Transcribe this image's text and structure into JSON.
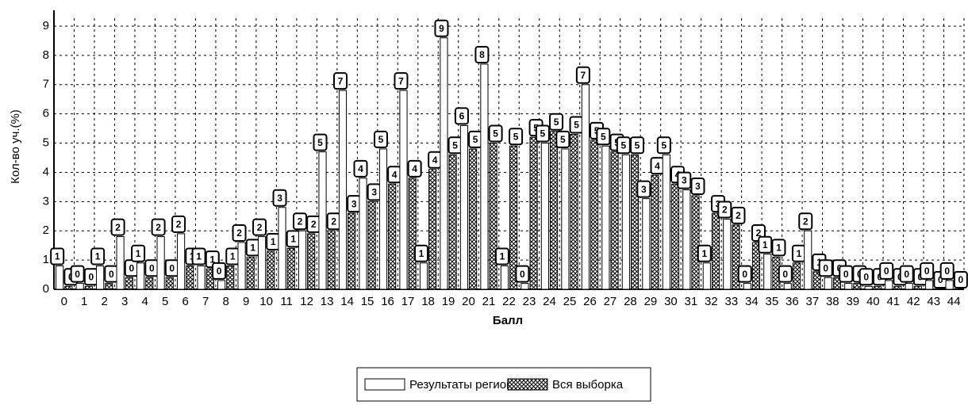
{
  "chart_data": {
    "type": "bar",
    "x_label": "Балл",
    "y_label": "Кол-во уч.(%)",
    "categories": [
      "0",
      "1",
      "2",
      "3",
      "4",
      "5",
      "6",
      "7",
      "8",
      "9",
      "10",
      "11",
      "12",
      "13",
      "14",
      "15",
      "16",
      "17",
      "18",
      "19",
      "20",
      "21",
      "22",
      "23",
      "24",
      "25",
      "26",
      "27",
      "28",
      "29",
      "30",
      "31",
      "32",
      "33",
      "34",
      "35",
      "36",
      "37",
      "38",
      "39",
      "40",
      "41",
      "42",
      "43",
      "44"
    ],
    "series": [
      {
        "name": "Результаты региона",
        "color": "#ffffff",
        "values": [
          0.8,
          0.2,
          0.8,
          1.8,
          0.9,
          1.8,
          1.9,
          0.8,
          0.3,
          1.6,
          1.8,
          2.8,
          2.0,
          4.7,
          6.8,
          3.8,
          4.8,
          6.8,
          0.9,
          8.6,
          5.6,
          7.7,
          0.8,
          0.2,
          5.0,
          4.8,
          7.0,
          4.9,
          4.6,
          3.1,
          4.6,
          3.4,
          0.9,
          2.4,
          0.2,
          1.2,
          0.2,
          2.0,
          0.4,
          0.2,
          0.1,
          0.3,
          0.2,
          0.3,
          0.3
        ],
        "value_labels": [
          "1",
          "0",
          "1",
          "2",
          "1",
          "2",
          "2",
          "1",
          "0",
          "2",
          "2",
          "3",
          "2",
          "5",
          "7",
          "4",
          "5",
          "7",
          "1",
          "9",
          "6",
          "8",
          "1",
          "0",
          "5",
          "5",
          "7",
          "5",
          "5",
          "3",
          "5",
          "3",
          "1",
          "2",
          "0",
          "1",
          "0",
          "2",
          "0",
          "0",
          "0",
          "0",
          "0",
          "0",
          "0"
        ]
      },
      {
        "name": "Вся выборка",
        "color": "#000000",
        "values": [
          0.1,
          0.1,
          0.2,
          0.4,
          0.4,
          0.4,
          0.8,
          0.7,
          0.8,
          1.1,
          1.3,
          1.4,
          1.9,
          2.0,
          2.6,
          3.0,
          3.6,
          3.8,
          4.1,
          4.6,
          4.8,
          5.0,
          4.9,
          5.2,
          5.4,
          5.3,
          5.1,
          4.7,
          4.6,
          3.9,
          3.6,
          3.2,
          2.6,
          2.2,
          1.6,
          1.1,
          0.9,
          0.6,
          0.4,
          0.2,
          0.1,
          0.1,
          0.1,
          0.0,
          0.0
        ],
        "value_labels": [
          "0",
          "0",
          "0",
          "0",
          "0",
          "0",
          "1",
          "1",
          "1",
          "1",
          "1",
          "1",
          "2",
          "2",
          "3",
          "3",
          "4",
          "4",
          "4",
          "5",
          "5",
          "5",
          "5",
          "5",
          "5",
          "5",
          "5",
          "5",
          "5",
          "4",
          "4",
          "3",
          "3",
          "2",
          "2",
          "1",
          "1",
          "1",
          "0",
          "0",
          "0",
          "0",
          "0",
          "0",
          "0"
        ]
      }
    ],
    "ylim": [
      0,
      9
    ],
    "yticks": [
      0,
      1,
      2,
      3,
      4,
      5,
      6,
      7,
      8,
      9
    ],
    "grid": true,
    "legend": "bottom"
  }
}
